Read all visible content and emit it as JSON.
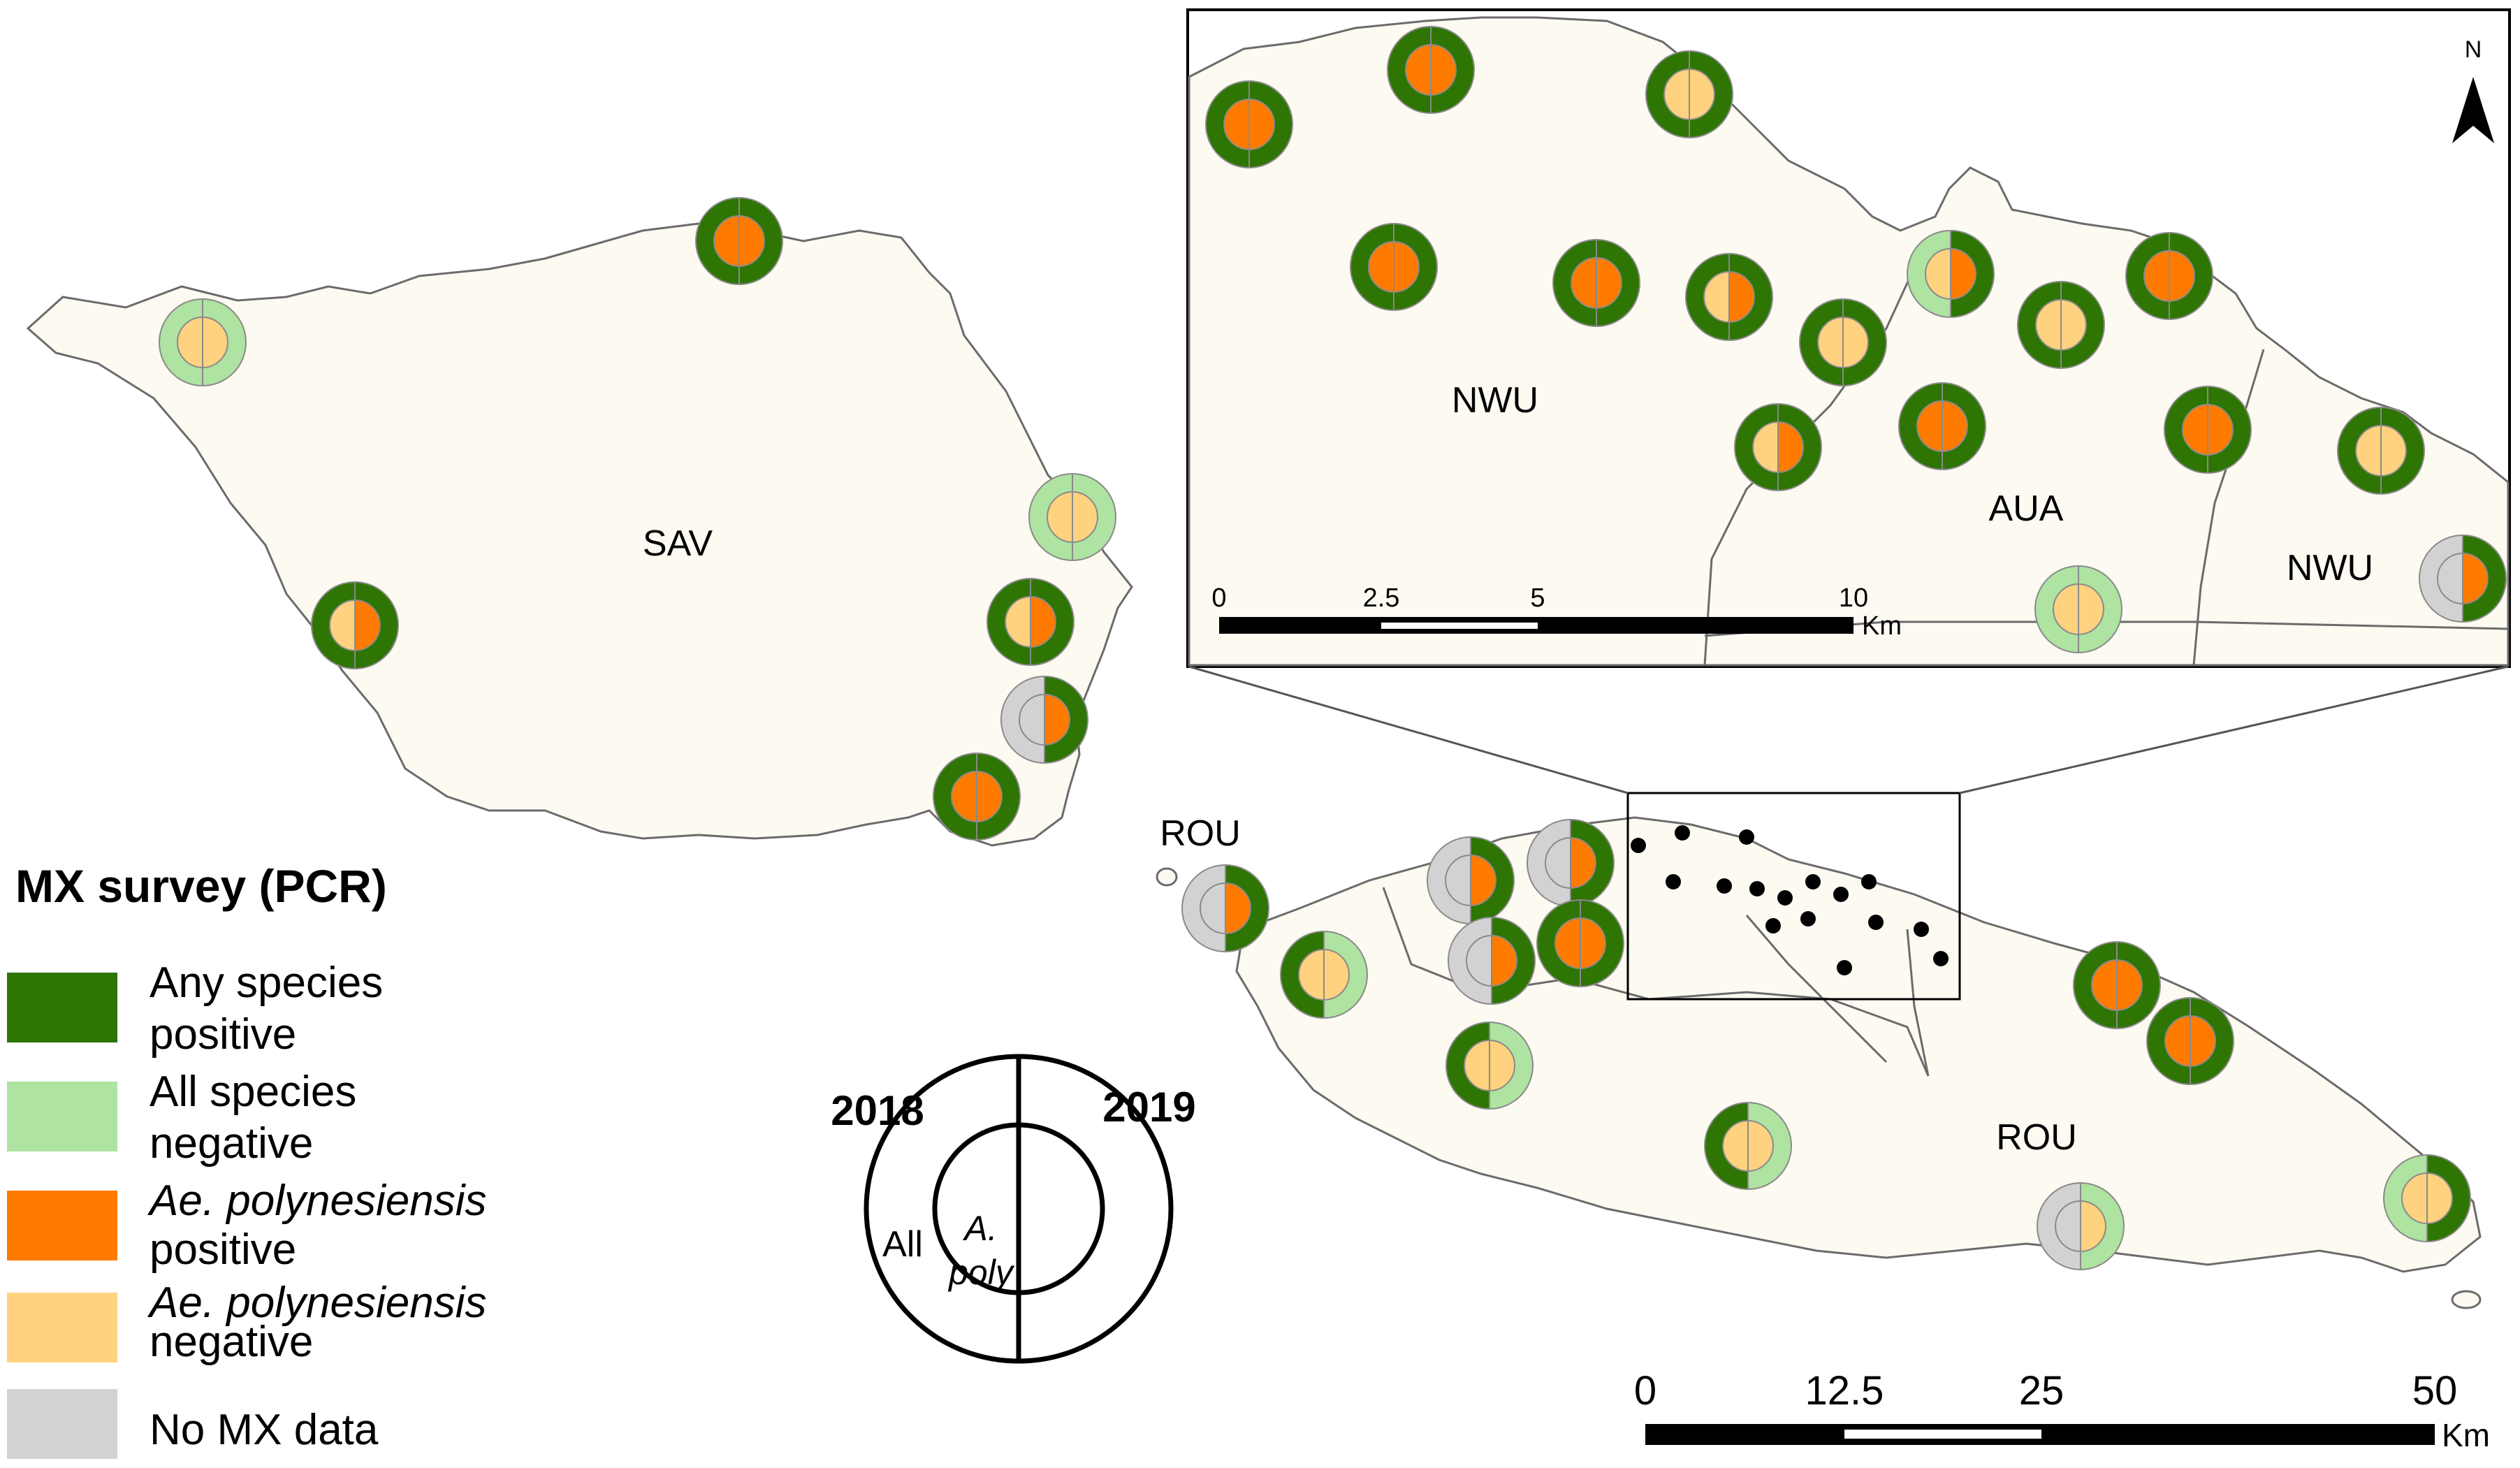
{
  "labels": {
    "sav": "SAV",
    "rou_west": "ROU",
    "rou_main": "ROU",
    "inset_nwu_west": "NWU",
    "inset_aua": "AUA",
    "inset_nwu_east": "NWU",
    "north": "N"
  },
  "legend": {
    "title": "MX survey (PCR)",
    "items": [
      {
        "line1": "Any species",
        "line2": "positive",
        "color": "#2e7504",
        "italic": false
      },
      {
        "line1": "All species",
        "line2": "negative",
        "color": "#aee3a1",
        "italic": false
      },
      {
        "line1": "Ae. polynesiensis",
        "line2": "positive",
        "color": "#ff7b00",
        "italic": true
      },
      {
        "line1": "Ae. polynesiensis",
        "line2": "negative",
        "color": "#ffd280",
        "italic": true
      },
      {
        "line1": "No MX data",
        "line2": "",
        "color": "#d2d2d2",
        "italic": false
      }
    ]
  },
  "key_diagram": {
    "year_left": "2018",
    "year_right": "2019",
    "outer_label": "All",
    "inner_label_1": "A.",
    "inner_label_2": "poly"
  },
  "scale_main": {
    "ticks": [
      "0",
      "12.5",
      "25",
      "50"
    ],
    "unit": "Km"
  },
  "scale_inset": {
    "ticks": [
      "0",
      "2.5",
      "5",
      "10"
    ],
    "unit": "Km"
  },
  "colors": {
    "any_pos": "#2e7504",
    "all_neg": "#aee3a1",
    "aepoly_pos": "#ff7b00",
    "aepoly_neg": "#ffd280",
    "no_data": "#d2d2d2",
    "land": "#fdfaf2",
    "coast": "#6b6b6b"
  }
}
